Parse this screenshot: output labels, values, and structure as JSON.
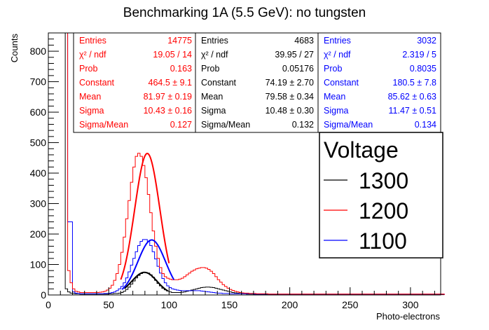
{
  "chart_data": {
    "type": "histogram",
    "title": "Benchmarking 1A (5.5 GeV): no tungsten",
    "xlabel": "Photo-electrons",
    "ylabel": "Counts",
    "xlim": [
      0,
      325
    ],
    "ylim": [
      0,
      860
    ],
    "xticks": [
      0,
      50,
      100,
      150,
      200,
      250,
      300
    ],
    "yticks": [
      0,
      100,
      200,
      300,
      400,
      500,
      600,
      700,
      800
    ],
    "legend": {
      "title": "Voltage",
      "position": "right",
      "entries": [
        {
          "label": "1300",
          "color": "#000000"
        },
        {
          "label": "1200",
          "color": "#ff0000"
        },
        {
          "label": "1100",
          "color": "#0000ff"
        }
      ]
    },
    "stat_boxes": [
      {
        "color": "#ff0000",
        "rows": [
          {
            "label": "Entries",
            "value": "14775"
          },
          {
            "label": "χ² / ndf",
            "value": "19.05 / 14"
          },
          {
            "label": "Prob",
            "value": "0.163"
          },
          {
            "label": "Constant",
            "value": "464.5 ± 9.1"
          },
          {
            "label": "Mean",
            "value": "81.97 ± 0.19"
          },
          {
            "label": "Sigma",
            "value": "10.43 ± 0.16"
          },
          {
            "label": "Sigma/Mean",
            "value": "0.127"
          }
        ]
      },
      {
        "color": "#000000",
        "rows": [
          {
            "label": "Entries",
            "value": "4683"
          },
          {
            "label": "χ² / ndf",
            "value": "39.95 / 27"
          },
          {
            "label": "Prob",
            "value": "0.05176"
          },
          {
            "label": "Constant",
            "value": "74.19 ± 2.70"
          },
          {
            "label": "Mean",
            "value": "79.58 ± 0.34"
          },
          {
            "label": "Sigma",
            "value": "10.48 ± 0.30"
          },
          {
            "label": "Sigma/Mean",
            "value": "0.132"
          }
        ]
      },
      {
        "color": "#0000ff",
        "rows": [
          {
            "label": "Entries",
            "value": "3032"
          },
          {
            "label": "χ² / ndf",
            "value": "2.319 / 5"
          },
          {
            "label": "Prob",
            "value": "0.8035"
          },
          {
            "label": "Constant",
            "value": "180.5 ± 7.8"
          },
          {
            "label": "Mean",
            "value": "85.62 ± 0.63"
          },
          {
            "label": "Sigma",
            "value": "11.47 ± 0.51"
          },
          {
            "label": "Sigma/Mean",
            "value": "0.134"
          }
        ]
      }
    ],
    "series": [
      {
        "name": "1300",
        "color": "#000000",
        "bin_width": 2,
        "x_start": 0,
        "counts": [
          860,
          860,
          860,
          860,
          860,
          860,
          860,
          20,
          10,
          6,
          5,
          4,
          4,
          3,
          3,
          3,
          3,
          3,
          3,
          3,
          3,
          3,
          3,
          3,
          3,
          4,
          4,
          5,
          5,
          6,
          8,
          12,
          18,
          26,
          36,
          46,
          56,
          64,
          70,
          74,
          74,
          72,
          66,
          58,
          48,
          38,
          30,
          22,
          17,
          13,
          10,
          8,
          8,
          8,
          8,
          9,
          10,
          12,
          14,
          16,
          18,
          20,
          22,
          24,
          25,
          26,
          26,
          25,
          24,
          22,
          20,
          18,
          16,
          14,
          12,
          10,
          8,
          7,
          6,
          5,
          4,
          4,
          3,
          3,
          3,
          2,
          2,
          2,
          2,
          2,
          2,
          2,
          2,
          2,
          2,
          1,
          1,
          1,
          1,
          1,
          1,
          1,
          1,
          1,
          1,
          1,
          1,
          1,
          1,
          1,
          1,
          1,
          1,
          1,
          1,
          1,
          1,
          1,
          1,
          1,
          1,
          1,
          1,
          1,
          1,
          1,
          1,
          1,
          1,
          1,
          1,
          1,
          1,
          1,
          1,
          1,
          1,
          1,
          1,
          1,
          1,
          1,
          1,
          1,
          1,
          1,
          1,
          1,
          1,
          1,
          1,
          1,
          1,
          1,
          1,
          1,
          1,
          1,
          1,
          1,
          1,
          1,
          1,
          1
        ]
      },
      {
        "name": "1200",
        "color": "#ff0000",
        "bin_width": 2,
        "x_start": 0,
        "counts": [
          860,
          860,
          860,
          860,
          860,
          860,
          860,
          860,
          80,
          40,
          20,
          12,
          10,
          8,
          8,
          8,
          8,
          8,
          8,
          8,
          8,
          9,
          10,
          12,
          16,
          22,
          32,
          48,
          70,
          100,
          140,
          190,
          250,
          310,
          370,
          420,
          455,
          465,
          455,
          425,
          385,
          330,
          270,
          210,
          160,
          120,
          90,
          70,
          60,
          55,
          52,
          50,
          50,
          50,
          52,
          55,
          60,
          66,
          72,
          78,
          82,
          86,
          88,
          90,
          90,
          88,
          84,
          78,
          70,
          60,
          50,
          42,
          34,
          28,
          22,
          18,
          15,
          12,
          10,
          8,
          7,
          6,
          6,
          5,
          5,
          5,
          4,
          4,
          4,
          4,
          4,
          3,
          3,
          3,
          3,
          3,
          3,
          3,
          3,
          3,
          3,
          3,
          3,
          3,
          3,
          3,
          3,
          3,
          3,
          3,
          3,
          3,
          3,
          3,
          3,
          3,
          3,
          3,
          3,
          3,
          3,
          3,
          3,
          3,
          3,
          3,
          3,
          3,
          3,
          3,
          3,
          3,
          3,
          3,
          3,
          3,
          3,
          3,
          3,
          3,
          3,
          3,
          3,
          3,
          3,
          3,
          3,
          3,
          3,
          3,
          3,
          3,
          3,
          3,
          3,
          3,
          3,
          3,
          3,
          3,
          3,
          3,
          3,
          3
        ]
      },
      {
        "name": "1100",
        "color": "#0000ff",
        "bin_width": 2,
        "x_start": 0,
        "counts": [
          860,
          860,
          860,
          860,
          860,
          860,
          860,
          860,
          240,
          240,
          10,
          6,
          5,
          4,
          4,
          4,
          4,
          4,
          4,
          4,
          4,
          4,
          4,
          5,
          5,
          6,
          8,
          10,
          14,
          20,
          28,
          40,
          56,
          76,
          98,
          120,
          142,
          162,
          176,
          182,
          182,
          176,
          162,
          142,
          118,
          94,
          72,
          54,
          40,
          30,
          24,
          20,
          18,
          16,
          15,
          14,
          14,
          14,
          14,
          14,
          14,
          14,
          14,
          13,
          12,
          11,
          10,
          9,
          8,
          7,
          6,
          6,
          5,
          5,
          5,
          4,
          4,
          4,
          4,
          4,
          4,
          4,
          4,
          4,
          4,
          3,
          3,
          3,
          3,
          3,
          3,
          3,
          3,
          3,
          3,
          3,
          3,
          3,
          3,
          3,
          3,
          3,
          3,
          3,
          3,
          3,
          3,
          3,
          3,
          3,
          3,
          3,
          3,
          3,
          3,
          3,
          3,
          3,
          3,
          3,
          3,
          3,
          3,
          3,
          3,
          3,
          3,
          3,
          3,
          3,
          3,
          3,
          3,
          3,
          3,
          3,
          3,
          3,
          3,
          3,
          3,
          3,
          3,
          3,
          3,
          3,
          3,
          3,
          3,
          3,
          3,
          3,
          3,
          3,
          3,
          3,
          3,
          3,
          3,
          3,
          3,
          3,
          3,
          3
        ]
      }
    ],
    "fits": [
      {
        "name": "1200",
        "color": "#ff0000",
        "constant": 464.5,
        "mean": 81.97,
        "sigma": 10.43,
        "range": [
          60,
          100
        ]
      },
      {
        "name": "1300",
        "color": "#000000",
        "constant": 74.19,
        "mean": 79.58,
        "sigma": 10.48,
        "range": [
          63,
          99
        ]
      },
      {
        "name": "1100",
        "color": "#0000ff",
        "constant": 180.5,
        "mean": 85.62,
        "sigma": 11.47,
        "range": [
          61,
          104
        ]
      }
    ]
  }
}
